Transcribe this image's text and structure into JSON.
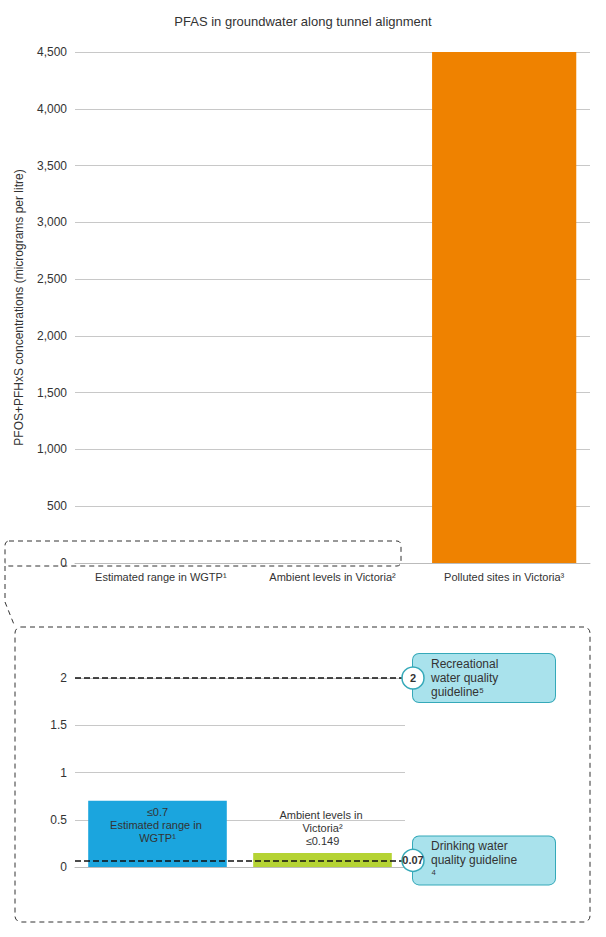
{
  "chart_data": [
    {
      "type": "bar",
      "title": "PFAS in groundwater along tunnel alignment",
      "ylabel": "PFOS+PFHxS concentrations (micrograms per litre)",
      "categories": [
        "Estimated range in WGTP¹",
        "Ambient levels in Victoria²",
        "Polluted sites in Victoria³"
      ],
      "values": [
        0.7,
        0.149,
        4500
      ],
      "colors": [
        "#1ba5de",
        "#b5d334",
        "#ef8200"
      ],
      "ylim": [
        0,
        4500
      ],
      "yticks": [
        0,
        500,
        {
          "value": 1000,
          "label": "1,000"
        },
        {
          "value": 1500,
          "label": "1,500"
        },
        {
          "value": 2000,
          "label": "2,000"
        },
        {
          "value": 2500,
          "label": "2,500"
        },
        {
          "value": 3000,
          "label": "3,000"
        },
        {
          "value": 3500,
          "label": "3,500"
        },
        {
          "value": 4000,
          "label": "4,000"
        },
        {
          "value": 4500,
          "label": "4,500"
        }
      ],
      "grid": true,
      "data_labels": false
    },
    {
      "type": "bar",
      "categories": [
        "Estimated range in WGTP¹",
        "Ambient levels in Victoria²"
      ],
      "values": [
        0.7,
        0.149
      ],
      "value_labels": [
        "≤0.7",
        "≤0.149"
      ],
      "colors": [
        "#1ba5de",
        "#b5d334"
      ],
      "ylim": [
        0,
        2
      ],
      "yticks": [
        0,
        0.5,
        1,
        1.5,
        2
      ],
      "grid": true,
      "data_labels": true,
      "tick_labels": "y",
      "reference_lines": [
        {
          "name": "Recreational water quality guideline⁵",
          "value": 2,
          "line_style": "dashed"
        },
        {
          "name": "Drinking water quality guideline⁴",
          "value": 0.07,
          "line_style": "dashed"
        }
      ]
    }
  ]
}
